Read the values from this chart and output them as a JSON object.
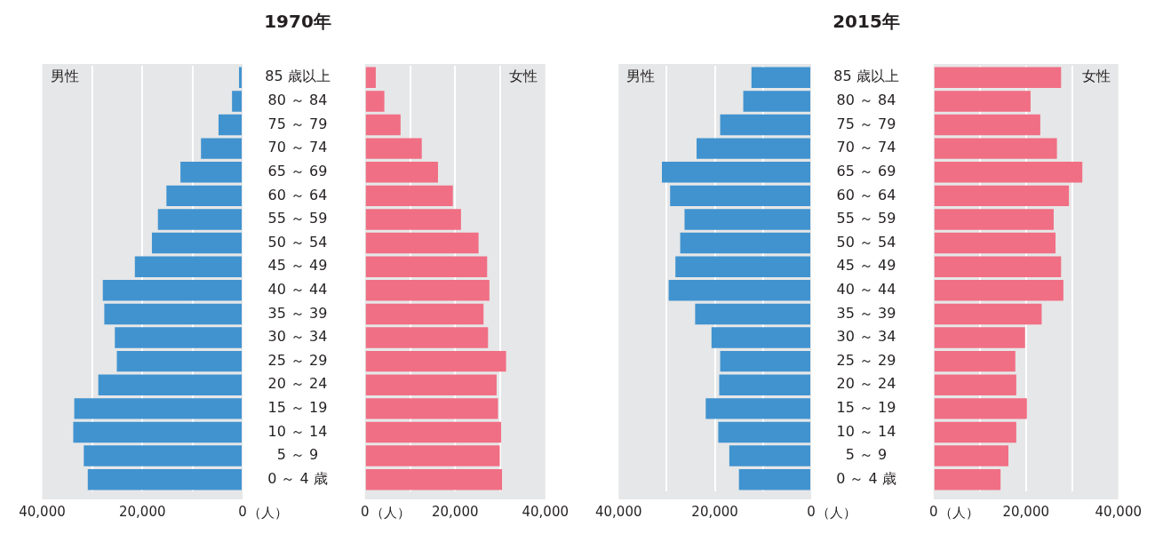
{
  "chart_data": [
    {
      "type": "bar",
      "orientation": "horizontal",
      "title": "1970年",
      "categories": [
        "85 歳以上",
        "80 ～ 84",
        "75 ～ 79",
        "70 ～ 74",
        "65 ～ 69",
        "60 ～ 64",
        "55 ～ 59",
        "50 ～ 54",
        "45 ～ 49",
        "40 ～ 44",
        "35 ～ 39",
        "30 ～ 34",
        "25 ～ 29",
        "20 ～ 24",
        "15 ～ 19",
        "10 ～ 14",
        "5 ～ 9",
        "0 ～ 4 歳"
      ],
      "series": [
        {
          "name": "男性",
          "color": "#4193cf",
          "values": [
            700,
            2100,
            4800,
            8300,
            12400,
            15200,
            16900,
            18100,
            21500,
            27900,
            27600,
            25500,
            25100,
            28800,
            33600,
            33800,
            31700,
            30900
          ]
        }
      ],
      "xlabel": "（人）",
      "xlim": [
        40000,
        0
      ],
      "xticks": [
        {
          "value": 40000,
          "label": "40,000"
        },
        {
          "value": 30000,
          "label": null
        },
        {
          "value": 20000,
          "label": "20,000"
        },
        {
          "value": 10000,
          "label": null
        },
        {
          "value": 0,
          "label": "0"
        }
      ],
      "grid": "x"
    },
    {
      "type": "bar",
      "orientation": "horizontal",
      "categories": [
        null,
        null,
        null,
        null,
        null,
        null,
        null,
        null,
        null,
        null,
        null,
        null,
        null,
        null,
        null,
        null,
        null,
        null
      ],
      "series": [
        {
          "name": "女性",
          "color": "#f06f84",
          "values": [
            2400,
            4300,
            7900,
            12600,
            16200,
            19500,
            21300,
            25200,
            27100,
            27600,
            26300,
            27300,
            31300,
            29200,
            29500,
            30200,
            29900,
            30400
          ]
        }
      ],
      "xlabel": "（人）",
      "xlim": [
        0,
        40000
      ],
      "xticks": [
        {
          "value": 0,
          "label": "0"
        },
        {
          "value": 10000,
          "label": null
        },
        {
          "value": 20000,
          "label": "20,000"
        },
        {
          "value": 30000,
          "label": null
        },
        {
          "value": 40000,
          "label": "40,000"
        }
      ],
      "grid": "x"
    },
    {
      "type": "bar",
      "orientation": "horizontal",
      "title": "2015年",
      "categories": [
        "85 歳以上",
        "80 ～ 84",
        "75 ～ 79",
        "70 ～ 74",
        "65 ～ 69",
        "60 ～ 64",
        "55 ～ 59",
        "50 ～ 54",
        "45 ～ 49",
        "40 ～ 44",
        "35 ～ 39",
        "30 ～ 34",
        "25 ～ 29",
        "20 ～ 24",
        "15 ～ 19",
        "10 ～ 14",
        "5 ～ 9",
        "0 ～ 4 歳"
      ],
      "series": [
        {
          "name": "男性",
          "color": "#4193cf",
          "values": [
            12400,
            14100,
            18900,
            23800,
            31000,
            29300,
            26300,
            27200,
            28200,
            29600,
            24100,
            20700,
            18900,
            19100,
            21900,
            19300,
            17000,
            15000
          ]
        }
      ],
      "xlabel": "（人）",
      "xlim": [
        40000,
        0
      ],
      "xticks": [
        {
          "value": 40000,
          "label": "40,000"
        },
        {
          "value": 30000,
          "label": null
        },
        {
          "value": 20000,
          "label": "20,000"
        },
        {
          "value": 10000,
          "label": null
        },
        {
          "value": 0,
          "label": "0"
        }
      ],
      "grid": "x"
    },
    {
      "type": "bar",
      "orientation": "horizontal",
      "categories": [
        null,
        null,
        null,
        null,
        null,
        null,
        null,
        null,
        null,
        null,
        null,
        null,
        null,
        null,
        null,
        null,
        null,
        null
      ],
      "series": [
        {
          "name": "女性",
          "color": "#f06f84",
          "values": [
            27600,
            21000,
            23100,
            26700,
            32200,
            29300,
            26000,
            26400,
            27600,
            28100,
            23400,
            19800,
            17700,
            17900,
            20200,
            17900,
            16200,
            14500
          ]
        }
      ],
      "xlabel": "（人）",
      "xlim": [
        0,
        40000
      ],
      "xticks": [
        {
          "value": 0,
          "label": "0"
        },
        {
          "value": 10000,
          "label": null
        },
        {
          "value": 20000,
          "label": "20,000"
        },
        {
          "value": 30000,
          "label": null
        },
        {
          "value": 40000,
          "label": "40,000"
        }
      ],
      "grid": "x"
    }
  ]
}
